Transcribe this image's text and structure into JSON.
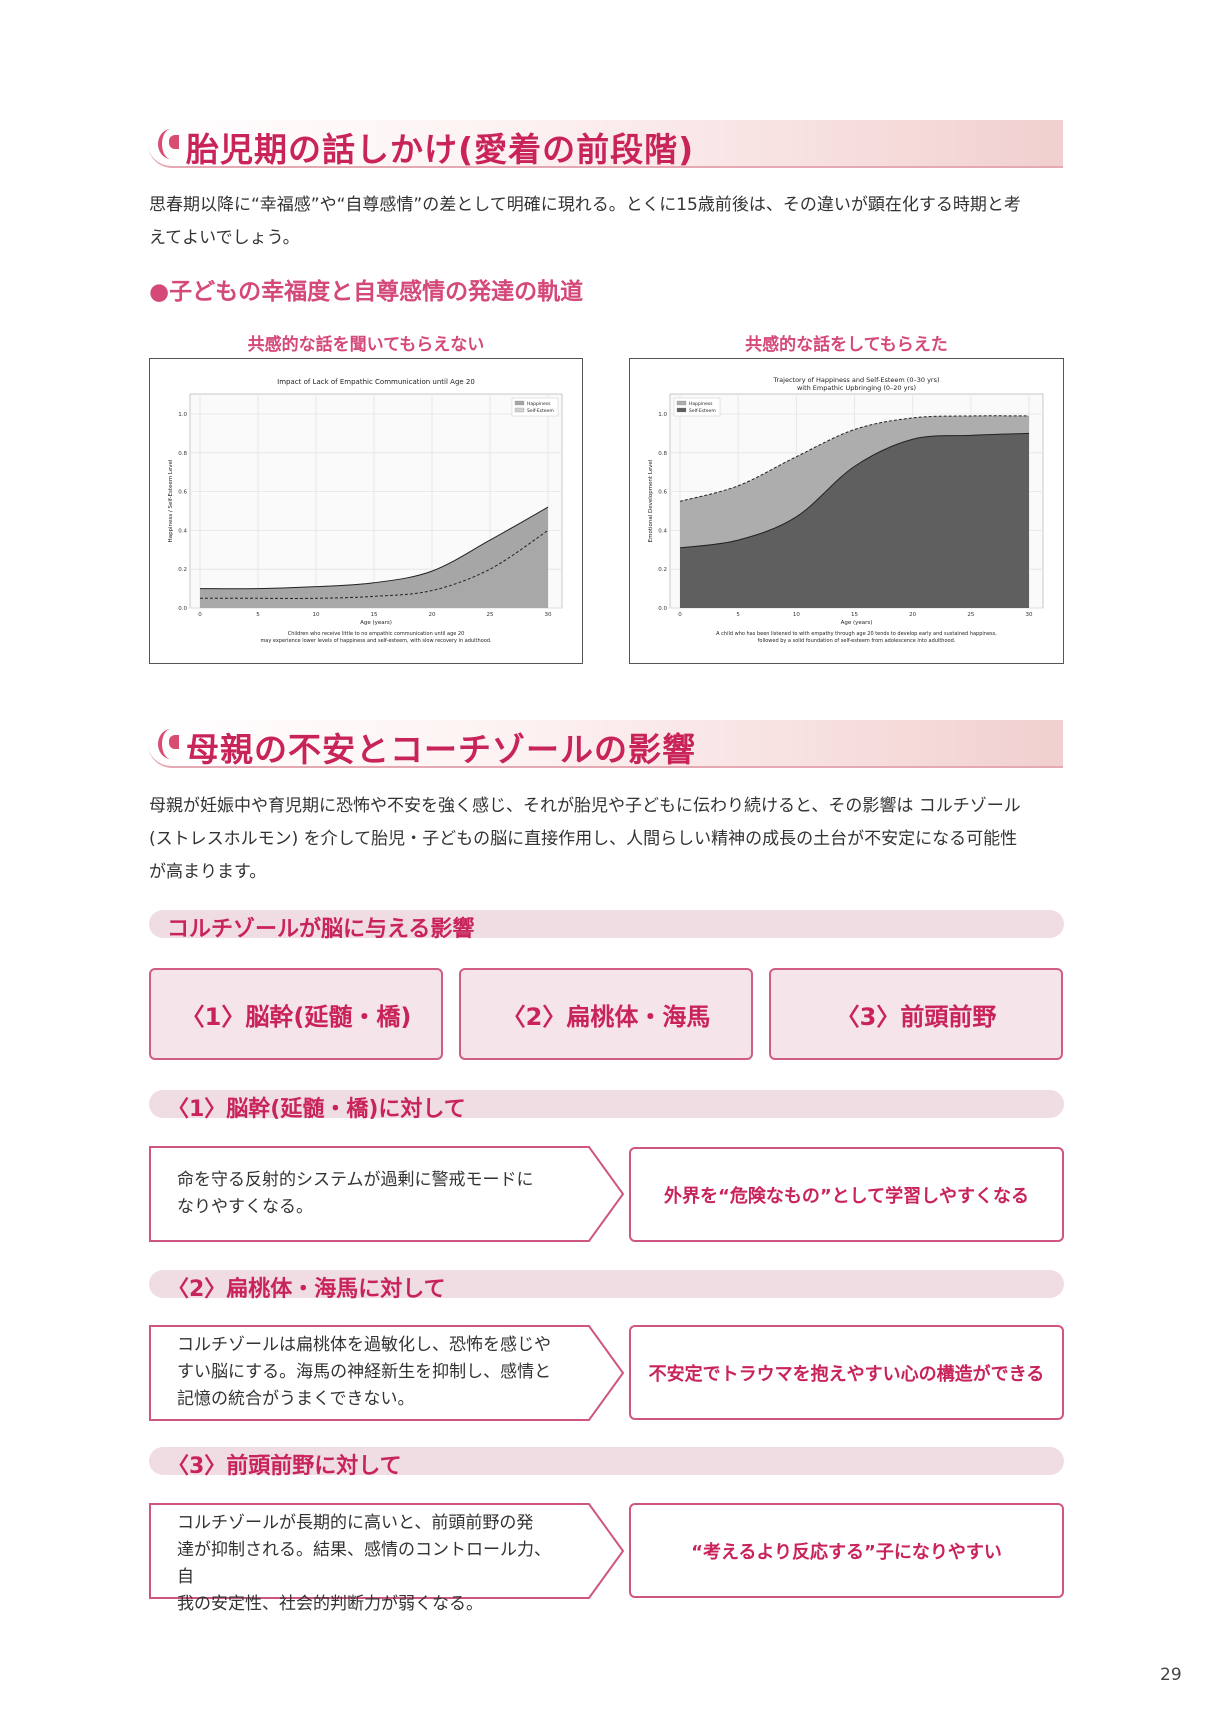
{
  "section1": {
    "title": "胎児期の話しかけ(愛着の前段階)",
    "para_line1": "思春期以降に“幸福感”や“自尊感情”の差として明確に現れる。とくに15歳前後は、その違いが顕在化する時期と考",
    "para_line2": "えてよいでしょう。",
    "subheading": "●子どもの幸福度と自尊感情の発達の軌道"
  },
  "chart_captions": {
    "left": "共感的な話を聞いてもらえない",
    "right": "共感的な話をしてもらえた"
  },
  "chart_data": [
    {
      "type": "area",
      "title": "Impact of Lack of Empathic Communication until Age 20",
      "xlabel": "Age (years)",
      "ylabel": "Happiness / Self-Esteem Level",
      "xlim": [
        0,
        30
      ],
      "ylim": [
        0,
        1.0
      ],
      "x_ticks": [
        "0",
        "5",
        "10",
        "15",
        "20",
        "25",
        "30"
      ],
      "y_ticks": [
        "0.0",
        "0.2",
        "0.4",
        "0.6",
        "0.8",
        "1.0"
      ],
      "legend_position": "top-right",
      "grid": true,
      "series": [
        {
          "name": "Happiness",
          "style": "solid",
          "fill": "#a6a6a6",
          "x": [
            0,
            5,
            10,
            15,
            20,
            25,
            30
          ],
          "y": [
            0.1,
            0.1,
            0.11,
            0.13,
            0.19,
            0.35,
            0.52
          ]
        },
        {
          "name": "Self-Esteem",
          "style": "dashed",
          "fill": "#d0d0d0",
          "x": [
            0,
            5,
            10,
            15,
            20,
            25,
            30
          ],
          "y": [
            0.05,
            0.05,
            0.05,
            0.06,
            0.09,
            0.2,
            0.4
          ]
        }
      ],
      "caption_line1": "Children who receive little to no empathic communication until age 20",
      "caption_line2": "may experience lower levels of happiness and self-esteem, with slow recovery in adulthood."
    },
    {
      "type": "area",
      "title_line1": "Trajectory of Happiness and Self-Esteem (0–30 yrs)",
      "title_line2": "with Empathic Upbringing (0–20 yrs)",
      "xlabel": "Age (years)",
      "ylabel": "Emotional Development Level",
      "xlim": [
        0,
        30
      ],
      "ylim": [
        0,
        1.0
      ],
      "x_ticks": [
        "0",
        "5",
        "10",
        "15",
        "20",
        "25",
        "30"
      ],
      "y_ticks": [
        "0.0",
        "0.2",
        "0.4",
        "0.6",
        "0.8",
        "1.0"
      ],
      "legend_position": "top-left",
      "grid": true,
      "series": [
        {
          "name": "Happiness",
          "style": "dashed",
          "fill": "#adadad",
          "x": [
            0,
            5,
            10,
            15,
            20,
            25,
            30
          ],
          "y": [
            0.55,
            0.63,
            0.78,
            0.92,
            0.98,
            0.99,
            0.99
          ]
        },
        {
          "name": "Self-Esteem",
          "style": "solid",
          "fill": "#5f5f5f",
          "x": [
            0,
            5,
            10,
            15,
            20,
            25,
            30
          ],
          "y": [
            0.31,
            0.35,
            0.47,
            0.73,
            0.87,
            0.89,
            0.9
          ]
        }
      ],
      "caption_line1": "A child who has been listened to with empathy through age 20 tends to develop early and sustained happiness,",
      "caption_line2": "followed by a solid foundation of self-esteem from adolescence into adulthood."
    }
  ],
  "section2": {
    "title": "母親の不安とコーチゾールの影響",
    "para_line1": "母親が妊娠中や育児期に恐怖や不安を強く感じ、それが胎児や子どもに伝わり続けると、その影響は コルチゾール",
    "para_line2": "(ストレスホルモン) を介して胎児・子どもの脳に直接作用し、人間らしい精神の成長の土台が不安定になる可能性",
    "para_line3": "が高まります。",
    "pill_heading": "コルチゾールが脳に与える影響",
    "brain_boxes": [
      "〈1〉脳幹(延髄・橋)",
      "〈2〉扁桃体・海馬",
      "〈3〉前頭前野"
    ]
  },
  "effects": [
    {
      "heading": "〈1〉脳幹(延髄・橋)に対して",
      "lines": [
        "命を守る反射的システムが過剰に警戒モードに",
        "なりやすくなる。"
      ],
      "result": "外界を“危険なもの”として学習しやすくなる"
    },
    {
      "heading": "〈2〉扁桃体・海馬に対して",
      "lines": [
        "コルチゾールは扁桃体を過敏化し、恐怖を感じや",
        "すい脳にする。海馬の神経新生を抑制し、感情と",
        "記憶の統合がうまくできない。"
      ],
      "result": "不安定でトラウマを抱えやすい心の構造ができる"
    },
    {
      "heading": "〈3〉前頭前野に対して",
      "lines": [
        "コルチゾールが長期的に高いと、前頭前野の発",
        "達が抑制される。結果、感情のコントロール力、自",
        "我の安定性、社会的判断力が弱くなる。"
      ],
      "result": "“考えるより反応する”子になりやすい"
    }
  ],
  "page_number": "29"
}
